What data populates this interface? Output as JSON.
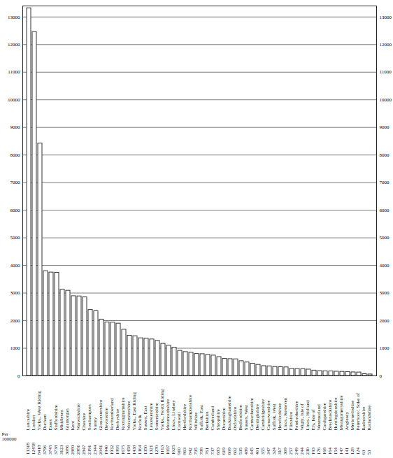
{
  "chart_data": {
    "type": "bar",
    "categories": [
      "Lancashire",
      "London",
      "Yorks., West Riding",
      "Durham",
      "Essex",
      "Staffordshire",
      "Middlesex",
      "Glamorgan",
      "Kent",
      "Warwickshire",
      "Cheshire",
      "Southampton",
      "Surrey",
      "Gloucestershire",
      "Devonshire",
      "Northumberland",
      "Derbyshire",
      "Nottinghamshire",
      "Worcestershire",
      "Yorks., East Riding",
      "Norfolk",
      "Sussex, East",
      "Leicestershire",
      "Somersetshire",
      "Yorks., North Riding",
      "Monmouthshire",
      "Lincs., Lindsey",
      "Cornwall",
      "Hertfordshire",
      "Northamptonshire",
      "Wiltshire",
      "Suffolk, East",
      "Berkshire",
      "Cumberland",
      "Shropshire",
      "Dorsetshire",
      "Buckinghamshire",
      "Oxfordshire",
      "Bedfordshire",
      "Sussex, West",
      "Carmarthenshire",
      "Denbighshire",
      "Cambridgeshire",
      "Carnarvonshire",
      "Suffolk, West",
      "Herefordshire",
      "Lincs., Kesteven",
      "Flintshire",
      "Pembrokeshire",
      "Wight, Isle of",
      "Lincs., Holland",
      "Ely, Isle of",
      "Westmorland",
      "Cardiganshire",
      "Brecknockshire",
      "Huntingdonshire",
      "Montgomeryshire",
      "Anglesey",
      "Merionethshire",
      "Peterboro', Soke of",
      "Radnorshire",
      "Rutlandshire"
    ],
    "values": [
      13318,
      12458,
      8418,
      3796,
      3745,
      3738,
      3123,
      3086,
      2889,
      2881,
      2847,
      2391,
      2344,
      2041,
      1940,
      1932,
      1895,
      1675,
      1458,
      1438,
      1364,
      1350,
      1321,
      1270,
      1163,
      1097,
      1025,
      910,
      863,
      842,
      795,
      788,
      761,
      737,
      683,
      619,
      609,
      602,
      535,
      489,
      445,
      401,
      355,
      347,
      324,
      317,
      309,
      257,
      249,
      244,
      230,
      193,
      176,
      168,
      164,
      154,
      147,
      141,
      128,
      124,
      63,
      53
    ],
    "ylabel": "Per 100000",
    "ylim": [
      0,
      13400
    ],
    "yticks": [
      0,
      1000,
      2000,
      3000,
      4000,
      5000,
      6000,
      7000,
      8000,
      9000,
      10000,
      11000,
      12000,
      13000
    ],
    "grid": true,
    "color": "#333333",
    "data_labels": true
  }
}
